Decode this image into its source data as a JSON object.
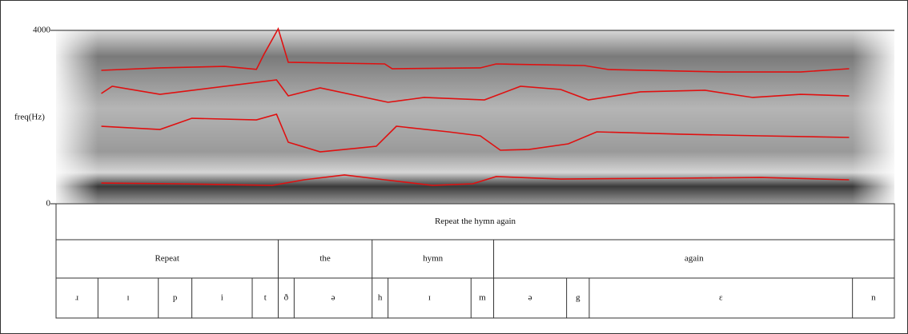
{
  "chart_data": {
    "type": "line",
    "y_label": "freq(Hz)",
    "ylim": [
      0,
      4000
    ],
    "yticks": [
      0,
      4000
    ],
    "xlim": [
      0,
      1
    ],
    "series": [
      {
        "color": "#e01010",
        "x": [
          0.054,
          0.124,
          0.201,
          0.239,
          0.248,
          0.265,
          0.277,
          0.392,
          0.401,
          0.506,
          0.525,
          0.63,
          0.659,
          0.793,
          0.888,
          0.946
        ],
        "values": [
          3078,
          3134,
          3170,
          3100,
          3447,
          4037,
          3263,
          3226,
          3115,
          3134,
          3226,
          3189,
          3097,
          3041,
          3041,
          3115
        ]
      },
      {
        "color": "#e01010",
        "x": [
          0.054,
          0.067,
          0.124,
          0.263,
          0.277,
          0.315,
          0.396,
          0.439,
          0.511,
          0.554,
          0.602,
          0.635,
          0.697,
          0.774,
          0.831,
          0.888,
          0.946
        ],
        "values": [
          2544,
          2710,
          2525,
          2857,
          2488,
          2673,
          2341,
          2452,
          2396,
          2710,
          2636,
          2396,
          2581,
          2618,
          2452,
          2525,
          2488
        ]
      },
      {
        "color": "#e01010",
        "x": [
          0.054,
          0.124,
          0.162,
          0.239,
          0.263,
          0.277,
          0.315,
          0.363,
          0.382,
          0.406,
          0.468,
          0.506,
          0.53,
          0.564,
          0.611,
          0.645,
          0.745,
          0.841,
          0.946
        ],
        "values": [
          1788,
          1714,
          1972,
          1935,
          2065,
          1419,
          1198,
          1290,
          1327,
          1788,
          1659,
          1567,
          1235,
          1253,
          1382,
          1659,
          1604,
          1567,
          1530
        ]
      },
      {
        "color": "#e01010",
        "x": [
          0.054,
          0.143,
          0.258,
          0.296,
          0.344,
          0.392,
          0.449,
          0.497,
          0.525,
          0.602,
          0.745,
          0.841,
          0.946
        ],
        "values": [
          479,
          461,
          424,
          553,
          664,
          553,
          424,
          461,
          627,
          571,
          590,
          608,
          553
        ]
      }
    ],
    "tiers": [
      {
        "intervals": [
          {
            "label": "Repeat the hymn again",
            "end": 1
          }
        ]
      },
      {
        "intervals": [
          {
            "label": "Repeat",
            "end": 0.265
          },
          {
            "label": "the",
            "end": 0.377
          },
          {
            "label": "hymn",
            "end": 0.522
          },
          {
            "label": "again",
            "end": 1
          }
        ]
      },
      {
        "intervals": [
          {
            "label": "ɹ",
            "end": 0.05
          },
          {
            "label": "ɪ",
            "end": 0.122
          },
          {
            "label": "p",
            "end": 0.162
          },
          {
            "label": "i",
            "end": 0.234
          },
          {
            "label": "t",
            "end": 0.265
          },
          {
            "label": "ð",
            "end": 0.284
          },
          {
            "label": "ə",
            "end": 0.377
          },
          {
            "label": "h",
            "end": 0.396
          },
          {
            "label": "ɪ",
            "end": 0.495
          },
          {
            "label": "m",
            "end": 0.522
          },
          {
            "label": "ə",
            "end": 0.609
          },
          {
            "label": "g",
            "end": 0.636
          },
          {
            "label": "ɛ",
            "end": 0.95
          },
          {
            "label": "n",
            "end": 1
          }
        ]
      }
    ]
  }
}
